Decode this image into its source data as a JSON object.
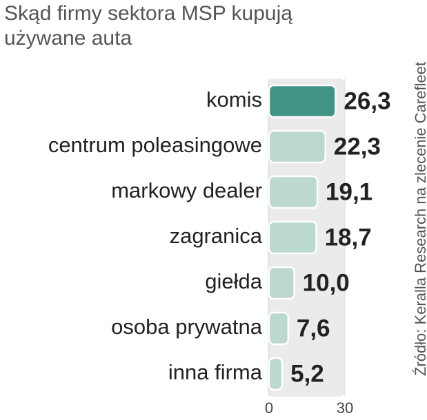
{
  "chart_data": {
    "type": "hbar",
    "title": "Skąd firmy sektora MSP kupują używane auta",
    "source": "Źródło: Keralla Research na zlecenie Carefleet",
    "categories": [
      "komis",
      "centrum poleasingowe",
      "markowy dealer",
      "zagranica",
      "giełda",
      "osoba prywatna",
      "inna firma"
    ],
    "values": [
      26.3,
      22.3,
      19.1,
      18.7,
      10.0,
      7.6,
      5.2
    ],
    "value_labels": [
      "26,3",
      "22,3",
      "19,1",
      "18,7",
      "10,0",
      "7,6",
      "5,2"
    ],
    "colors": [
      "#3f9485",
      "#bcd9d1",
      "#bcd9d1",
      "#bcd9d1",
      "#bcd9d1",
      "#bcd9d1",
      "#bcd9d1"
    ],
    "xlim": [
      0,
      30
    ],
    "xticks": [
      0,
      30
    ],
    "grid": true
  }
}
